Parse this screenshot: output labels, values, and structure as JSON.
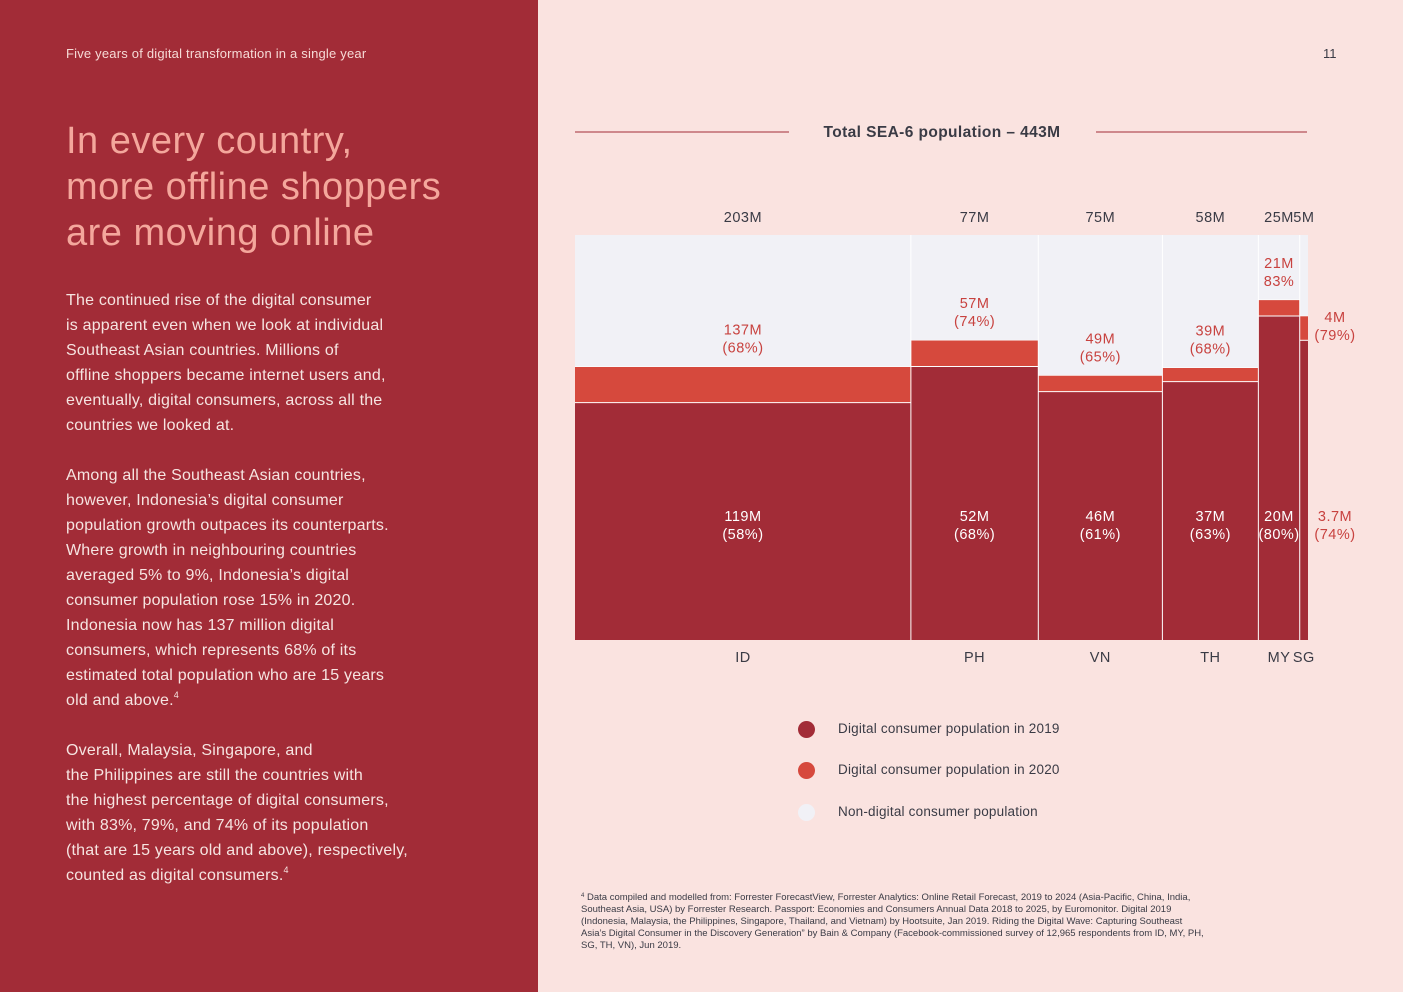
{
  "header": {
    "section_label": "Five years of digital transformation in a single year",
    "page_number": "11"
  },
  "headline": {
    "lines": [
      "In every country,",
      "more offline shoppers",
      "are moving online"
    ]
  },
  "body": {
    "para1": [
      "The continued rise of the digital consumer",
      "is apparent even when we look at individual",
      "Southeast Asian countries. Millions of",
      "offline shoppers became internet users and,",
      "eventually, digital consumers, across all the",
      "countries we looked at."
    ],
    "para2": [
      "Among all the Southeast Asian countries,",
      "however, Indonesia’s digital consumer",
      "population growth outpaces its counterparts.",
      "Where growth in neighbouring countries",
      "averaged 5% to 9%, Indonesia’s digital",
      "consumer population rose 15% in 2020.",
      "Indonesia now has 137 million digital",
      "consumers, which represents 68% of its",
      "estimated total population who are 15 years",
      "old and above."
    ],
    "para3": [
      "Overall, Malaysia, Singapore, and",
      "the Philippines are still the countries with",
      "the highest percentage of digital consumers,",
      "with 83%, 79%, and 74% of its population",
      "(that are 15 years old and above), respectively,",
      "counted as digital consumers."
    ],
    "footnote_ref": "4"
  },
  "chart_data": {
    "type": "bar",
    "subtype": "marimekko-stacked",
    "title": "Total SEA-6 population – 443M",
    "categories": [
      "ID",
      "PH",
      "VN",
      "TH",
      "MY",
      "SG"
    ],
    "total_population_m": [
      203,
      77,
      75,
      58,
      25,
      5
    ],
    "total_labels": [
      "203M",
      "77M",
      "75M",
      "58M",
      "25M",
      "5M"
    ],
    "digital_2019_m": [
      119,
      52,
      46,
      37,
      20,
      3.7
    ],
    "digital_2019_labels": [
      [
        "119M",
        "(58%)"
      ],
      [
        "52M",
        "(68%)"
      ],
      [
        "46M",
        "(61%)"
      ],
      [
        "37M",
        "(63%)"
      ],
      [
        "20M",
        "(80%)"
      ],
      [
        "3.7M",
        "(74%)"
      ]
    ],
    "digital_2020_m": [
      137,
      57,
      49,
      39,
      21,
      4
    ],
    "digital_2020_labels": [
      [
        "137M",
        "(68%)"
      ],
      [
        "57M",
        "(74%)"
      ],
      [
        "49M",
        "(65%)"
      ],
      [
        "39M",
        "(68%)"
      ],
      [
        "21M",
        "83%"
      ],
      [
        "4M",
        "(79%)"
      ]
    ],
    "series": [
      {
        "name": "Digital consumer population in 2019",
        "color": "#a22c37"
      },
      {
        "name": "Digital consumer population in 2020",
        "color": "#d6493d"
      },
      {
        "name": "Non-digital consumer population",
        "color": "#f1f1f6"
      }
    ],
    "colors": {
      "label_dark": "#3a3b45",
      "label_red": "#c8423f",
      "label_light": "#ffffff",
      "title_line": "#a22c37"
    }
  },
  "footnote": {
    "marker": "4",
    "lines": [
      " Data compiled and modelled from: Forrester ForecastView, Forrester Analytics: Online Retail Forecast, 2019 to 2024 (Asia-Pacific, China, India,",
      "Southeast Asia, USA) by Forrester Research. Passport: Economies and Consumers Annual Data 2018 to 2025, by Euromonitor. Digital 2019",
      "(Indonesia, Malaysia, the Philippines, Singapore, Thailand, and Vietnam) by Hootsuite, Jan 2019. Riding the Digital Wave: Capturing Southeast",
      "Asia’s Digital Consumer in the Discovery Generation” by Bain & Company (Facebook-commissioned survey of 12,965 respondents from ID, MY, PH,",
      "SG, TH, VN), Jun 2019."
    ]
  }
}
